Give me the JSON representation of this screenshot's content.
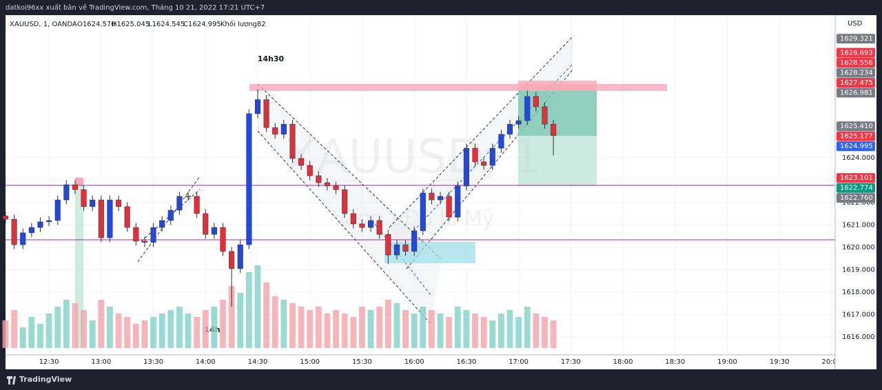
{
  "header": {
    "text": "datkoi96xx xuất bản về TradingView.com, Tháng 10 21, 2022 17:21 UTC+7"
  },
  "footer": {
    "brand": "TradingView"
  },
  "chart_data": {
    "type": "candlestick",
    "legend": {
      "symbol": "XAUUSD, 1, OANDA",
      "open": "O1624.570",
      "high": "H1625.045",
      "low": "L1624.545",
      "close": "C1624.995",
      "volume": "Khối lượng82"
    },
    "currency": "USD",
    "watermark": [
      "XAUUSD, 1",
      "Vàng / Đô la Mỹ"
    ],
    "annotations": [
      "14h30",
      "14h"
    ],
    "x": [
      "12:05",
      "12:10",
      "12:15",
      "12:20",
      "12:25",
      "12:30",
      "12:35",
      "12:40",
      "12:45",
      "12:50",
      "12:55",
      "13:00",
      "13:05",
      "13:10",
      "13:15",
      "13:20",
      "13:25",
      "13:30",
      "13:35",
      "13:40",
      "13:45",
      "13:50",
      "13:55",
      "14:00",
      "14:05",
      "14:10",
      "14:15",
      "14:20",
      "14:25",
      "14:30",
      "14:35",
      "14:40",
      "14:45",
      "14:50",
      "14:55",
      "15:00",
      "15:05",
      "15:10",
      "15:15",
      "15:20",
      "15:25",
      "15:30",
      "15:35",
      "15:40",
      "15:45",
      "15:50",
      "15:55",
      "16:00",
      "16:05",
      "16:10",
      "16:15",
      "16:20",
      "16:25",
      "16:30",
      "16:35",
      "16:40",
      "16:45",
      "16:50",
      "16:55",
      "17:00",
      "17:05",
      "17:10",
      "17:15",
      "17:20"
    ],
    "open": [
      1621.4,
      1621.26,
      1620.12,
      1620.65,
      1620.89,
      1621.14,
      1621.2,
      1622.12,
      1622.8,
      1622.58,
      1621.82,
      1622.12,
      1620.43,
      1622.12,
      1621.82,
      1620.89,
      1620.28,
      1620.22,
      1620.89,
      1621.2,
      1621.66,
      1622.28,
      1622.28,
      1621.51,
      1620.58,
      1620.89,
      1619.82,
      1619.05,
      1620.12,
      1625.97,
      1626.6,
      1625.35,
      1625.05,
      1625.5,
      1623.97,
      1623.66,
      1623.2,
      1622.89,
      1622.74,
      1622.58,
      1621.51,
      1621.05,
      1620.89,
      1621.2,
      1620.58,
      1619.66,
      1620.12,
      1619.82,
      1620.74,
      1622.43,
      1622.12,
      1622.28,
      1621.35,
      1622.74,
      1624.43,
      1623.82,
      1623.66,
      1624.43,
      1625.05,
      1625.5,
      1625.66,
      1626.74,
      1626.28,
      1625.5
    ],
    "high": [
      1621.6,
      1621.46,
      1620.85,
      1621.09,
      1621.34,
      1621.4,
      1622.32,
      1623.0,
      1623.0,
      1622.78,
      1622.32,
      1622.32,
      1622.32,
      1622.32,
      1622.02,
      1621.09,
      1620.48,
      1621.09,
      1621.4,
      1621.86,
      1622.48,
      1622.48,
      1622.48,
      1621.71,
      1621.09,
      1621.09,
      1620.02,
      1620.32,
      1626.17,
      1627.05,
      1626.8,
      1625.55,
      1625.7,
      1625.7,
      1624.17,
      1623.86,
      1623.4,
      1623.09,
      1622.94,
      1622.78,
      1621.71,
      1621.25,
      1621.4,
      1621.4,
      1620.78,
      1620.32,
      1620.32,
      1620.94,
      1622.63,
      1622.63,
      1622.48,
      1622.48,
      1622.94,
      1624.63,
      1624.63,
      1624.02,
      1624.63,
      1625.25,
      1625.7,
      1625.86,
      1627.0,
      1626.94,
      1626.48,
      1625.7
    ],
    "low": [
      1621.06,
      1619.92,
      1619.92,
      1620.45,
      1620.69,
      1620.94,
      1621.0,
      1621.92,
      1622.38,
      1621.62,
      1621.62,
      1620.23,
      1620.23,
      1621.62,
      1620.69,
      1620.08,
      1620.02,
      1620.02,
      1620.69,
      1621.0,
      1621.46,
      1622.08,
      1621.31,
      1620.38,
      1620.38,
      1619.62,
      1617.35,
      1618.85,
      1619.92,
      1625.77,
      1625.15,
      1624.85,
      1624.85,
      1623.77,
      1623.46,
      1623.0,
      1622.69,
      1622.54,
      1622.38,
      1621.31,
      1620.85,
      1620.69,
      1620.69,
      1620.38,
      1619.25,
      1619.46,
      1619.62,
      1619.62,
      1620.54,
      1621.92,
      1621.92,
      1621.15,
      1621.15,
      1622.54,
      1623.62,
      1623.46,
      1623.46,
      1624.23,
      1624.85,
      1625.3,
      1625.46,
      1626.08,
      1625.3,
      1624.1
    ],
    "close": [
      1621.26,
      1620.12,
      1620.65,
      1620.89,
      1621.14,
      1621.2,
      1622.12,
      1622.8,
      1622.58,
      1621.82,
      1622.12,
      1620.43,
      1622.12,
      1621.82,
      1620.89,
      1620.28,
      1620.22,
      1620.89,
      1621.2,
      1621.66,
      1622.28,
      1622.28,
      1621.51,
      1620.58,
      1620.89,
      1619.82,
      1619.05,
      1620.12,
      1625.97,
      1626.6,
      1625.35,
      1625.05,
      1625.5,
      1623.97,
      1623.66,
      1623.2,
      1622.89,
      1622.74,
      1622.58,
      1621.51,
      1621.05,
      1620.89,
      1621.2,
      1620.58,
      1619.66,
      1620.12,
      1619.82,
      1620.74,
      1622.43,
      1622.12,
      1622.28,
      1621.35,
      1622.74,
      1624.43,
      1623.82,
      1623.66,
      1624.43,
      1625.05,
      1625.5,
      1625.66,
      1626.74,
      1626.28,
      1625.5,
      1624.995
    ],
    "volume": [
      40,
      55,
      30,
      45,
      35,
      50,
      60,
      70,
      65,
      55,
      40,
      70,
      60,
      50,
      45,
      35,
      40,
      45,
      50,
      55,
      60,
      50,
      45,
      55,
      60,
      70,
      90,
      80,
      110,
      120,
      95,
      75,
      70,
      65,
      60,
      55,
      60,
      50,
      55,
      50,
      45,
      60,
      55,
      60,
      70,
      65,
      55,
      50,
      60,
      55,
      50,
      45,
      60,
      55,
      50,
      45,
      40,
      50,
      55,
      45,
      60,
      50,
      45,
      40
    ],
    "up_color": "#2449d8",
    "down_color": "#e0313b",
    "wick_color": "#2a2e39",
    "volume_up_color": "#7fd1c8",
    "volume_down_color": "#f4a3a6",
    "xlim": [
      "12:05",
      "20:02"
    ],
    "xticks": [
      "12:30",
      "13:00",
      "13:30",
      "14:00",
      "14:30",
      "15:00",
      "15:30",
      "16:00",
      "16:30",
      "17:00",
      "17:30",
      "18:00",
      "18:30",
      "19:00",
      "19:30",
      "20:00"
    ],
    "ylim": [
      1615.2,
      1630.37
    ],
    "yticks": [
      {
        "value": 1616,
        "label": "1616.000"
      },
      {
        "value": 1617,
        "label": "1617.000"
      },
      {
        "value": 1618,
        "label": "1618.000"
      },
      {
        "value": 1619,
        "label": "1619.000"
      },
      {
        "value": 1620,
        "label": "1620.000"
      },
      {
        "value": 1621,
        "label": "1621.000"
      },
      {
        "value": 1622,
        "label": "1622.000"
      },
      {
        "value": 1623,
        "label": "1623.000"
      },
      {
        "value": 1624,
        "label": "1624.000"
      }
    ],
    "price_labels": [
      {
        "value": 1629.321,
        "color": "#787b86"
      },
      {
        "value": 1628.693,
        "color": "#f23645"
      },
      {
        "value": 1628.556,
        "color": "#f23645"
      },
      {
        "value": 1628.234,
        "color": "#787b86"
      },
      {
        "value": 1627.475,
        "color": "#f23645"
      },
      {
        "value": 1626.981,
        "color": "#787b86"
      },
      {
        "value": {
          "value": 1625.41,
          "label": "1625.410"
        },
        "color": "#787b86"
      },
      {
        "value": 1625.177,
        "color": "#f23645"
      },
      {
        "value": 1624.995,
        "color": "#2962ff"
      },
      {
        "value": 1623.101,
        "color": "#f23645"
      },
      {
        "value": 1622.774,
        "color": "#089981"
      },
      {
        "value": {
          "value": 1622.76,
          "label": "1622.760"
        },
        "color": "#787b86"
      }
    ]
  }
}
